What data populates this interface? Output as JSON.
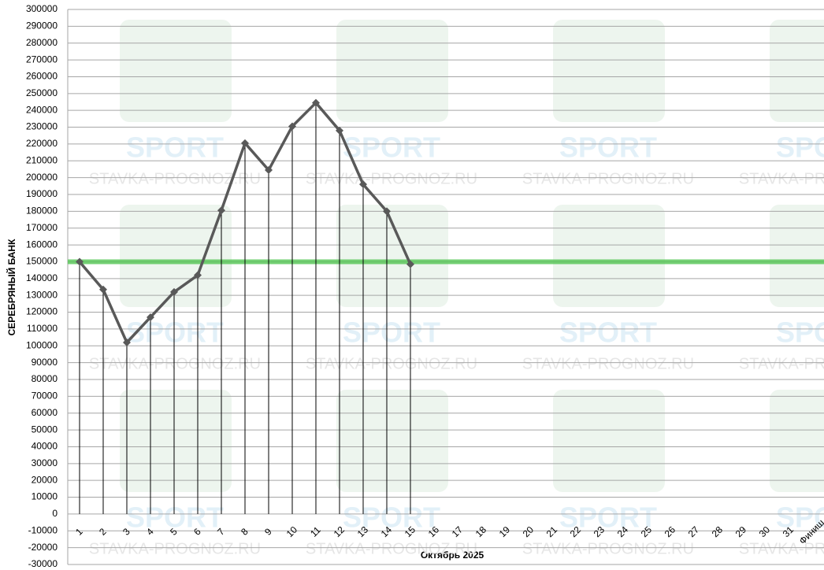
{
  "chart_data": {
    "type": "line",
    "x_label": "Октябрь 2025",
    "y_label": "СЕРЕБРЯНЫЙ БАНК",
    "watermark": "STAVKA-PROGNOZ.RU",
    "watermark_logo": "SPORT",
    "categories": [
      "1",
      "2",
      "3",
      "4",
      "5",
      "6",
      "7",
      "8",
      "9",
      "10",
      "11",
      "12",
      "13",
      "14",
      "15",
      "16",
      "17",
      "18",
      "19",
      "20",
      "21",
      "22",
      "23",
      "24",
      "25",
      "26",
      "27",
      "28",
      "29",
      "30",
      "31",
      "Финиш"
    ],
    "series": [
      {
        "color": "#595959",
        "values": [
          150000,
          133500,
          102000,
          117000,
          132000,
          142000,
          180500,
          220500,
          204500,
          230500,
          244500,
          228000,
          196000,
          180000,
          148500,
          null,
          null,
          null,
          null,
          null,
          null,
          null,
          null,
          null,
          null,
          null,
          null,
          null,
          null,
          null,
          null,
          null
        ]
      }
    ],
    "reference_line": {
      "value": 150000,
      "color": "#5cc85c"
    },
    "drop_lines": true,
    "ylim": [
      -30000,
      300000
    ],
    "yticks": [
      -30000,
      -20000,
      -10000,
      0,
      10000,
      20000,
      30000,
      40000,
      50000,
      60000,
      70000,
      80000,
      90000,
      100000,
      110000,
      120000,
      130000,
      140000,
      150000,
      160000,
      170000,
      180000,
      190000,
      200000,
      210000,
      220000,
      230000,
      240000,
      250000,
      260000,
      270000,
      280000,
      290000,
      300000
    ],
    "grid": true
  }
}
